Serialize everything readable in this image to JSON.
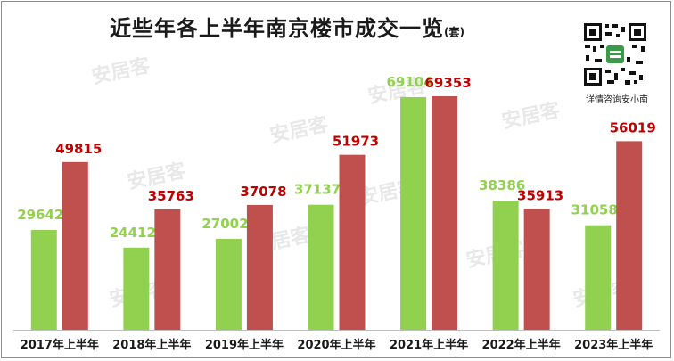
{
  "title": "近些年各上半年南京楼市成交一览",
  "unit": "(套)",
  "qr_caption": "详情咨询安小南",
  "watermark": "安居客",
  "colors": {
    "series1": "#92d050",
    "series2": "#c0504d"
  },
  "chart_data": {
    "type": "bar",
    "title": "近些年各上半年南京楼市成交一览",
    "categories": [
      "2017年上半年",
      "2018年上半年",
      "2019年上半年",
      "2020年上半年",
      "2021年上半年",
      "2022年上半年",
      "2023年上半年"
    ],
    "series": [
      {
        "values": [
          29642,
          24412,
          27002,
          37137,
          69104,
          38386,
          31058
        ],
        "color": "#92d050"
      },
      {
        "values": [
          49815,
          35763,
          37078,
          51973,
          69353,
          35913,
          56019
        ],
        "color": "#c0504d"
      }
    ],
    "ylim": [
      0,
      72000
    ],
    "grid": false,
    "legend": "none"
  }
}
